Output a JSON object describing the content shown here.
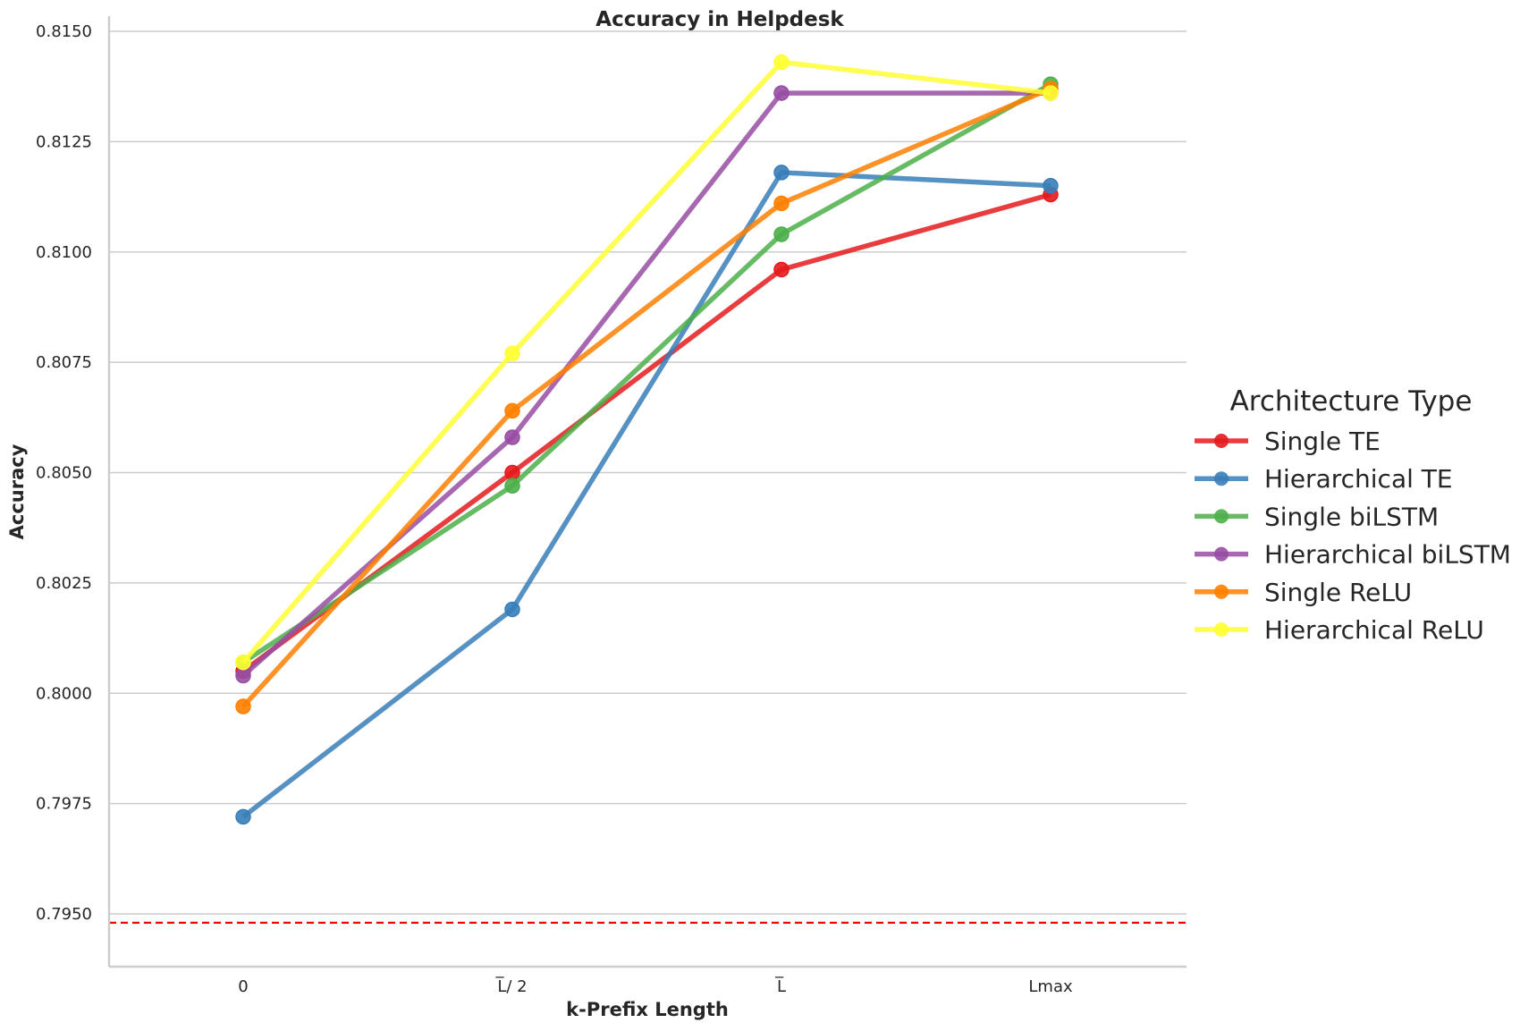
{
  "chart_data": {
    "type": "line",
    "title": "Accuracy in Helpdesk",
    "xlabel": "k-Prefix Length",
    "ylabel": "Accuracy",
    "categories": [
      "0",
      "L̅/ 2",
      "L̅",
      "Lmax"
    ],
    "ylim": [
      0.7938,
      0.8153
    ],
    "yticks": [
      0.795,
      0.7975,
      0.8,
      0.8025,
      0.805,
      0.8075,
      0.81,
      0.8125,
      0.815
    ],
    "ytick_labels": [
      "0.7950",
      "0.7975",
      "0.8000",
      "0.8025",
      "0.8050",
      "0.8075",
      "0.8100",
      "0.8125",
      "0.8150"
    ],
    "grid": "horizontal",
    "baseline": {
      "value": 0.7948,
      "color": "#ff0000",
      "style": "dashed"
    },
    "legend": {
      "title": "Architecture Type",
      "placement": "right"
    },
    "series": [
      {
        "name": "Single TE",
        "color": "#e41a1c",
        "values": [
          0.8005,
          0.805,
          0.8096,
          0.8113
        ]
      },
      {
        "name": "Hierarchical TE",
        "color": "#377eb8",
        "values": [
          0.7972,
          0.8019,
          0.8118,
          0.8115
        ]
      },
      {
        "name": "Single biLSTM",
        "color": "#4daf4a",
        "values": [
          0.8007,
          0.8047,
          0.8104,
          0.8138
        ]
      },
      {
        "name": "Hierarchical biLSTM",
        "color": "#984ea3",
        "values": [
          0.8004,
          0.8058,
          0.8136,
          0.8136
        ]
      },
      {
        "name": "Single ReLU",
        "color": "#ff7f00",
        "values": [
          0.7997,
          0.8064,
          0.8111,
          0.8137
        ]
      },
      {
        "name": "Hierarchical ReLU",
        "color": "#ffff33",
        "values": [
          0.8007,
          0.8077,
          0.8143,
          0.8136
        ]
      }
    ]
  }
}
